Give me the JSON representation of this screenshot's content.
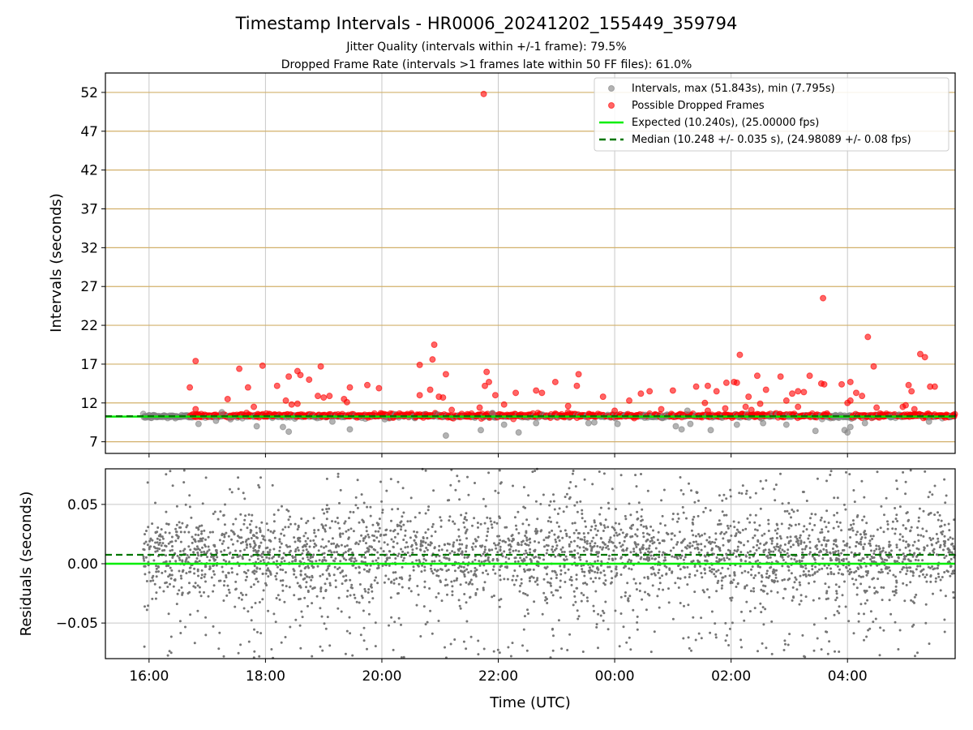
{
  "figure": {
    "title": "Timestamp Intervals - HR0006_20241202_155449_359794",
    "subtitle_1": "Jitter Quality (intervals within +/-1 frame): 79.5%",
    "subtitle_2": "Dropped Frame Rate (intervals >1 frames late within 50 FF files): 61.0%"
  },
  "colors": {
    "intervals": "#808080",
    "dropped": "#ff0000",
    "expected": "#00ee00",
    "median": "#007700",
    "hgrid_top": "#d2b06a",
    "vgrid": "#c8c8c8"
  },
  "chart_data": [
    {
      "type": "scatter",
      "name": "intervals",
      "ylabel": "Intervals (seconds)",
      "yticks": [
        "7",
        "12",
        "17",
        "22",
        "27",
        "32",
        "37",
        "42",
        "47",
        "52"
      ],
      "ylim": [
        5.5,
        54.5
      ],
      "xlim_hours": [
        15.25,
        29.85
      ],
      "grid": true,
      "legend_position": "top-right",
      "legend": {
        "intervals": "Intervals, max (51.843s), min (7.795s)",
        "dropped": "Possible Dropped Frames",
        "expected": "Expected (10.240s), (25.00000 fps)",
        "median": "Median (10.248 +/- 0.035 s), (24.98089 +/- 0.08 fps)"
      },
      "expected_line": 10.24,
      "median_line": 10.248,
      "dropped_outliers": [
        {
          "x": 21.75,
          "y": 51.8
        },
        {
          "x": 27.58,
          "y": 25.5
        },
        {
          "x": 28.35,
          "y": 20.5
        },
        {
          "x": 20.9,
          "y": 19.5
        },
        {
          "x": 26.15,
          "y": 18.2
        },
        {
          "x": 29.25,
          "y": 18.3
        },
        {
          "x": 29.33,
          "y": 17.9
        },
        {
          "x": 16.8,
          "y": 17.4
        },
        {
          "x": 20.87,
          "y": 17.6
        },
        {
          "x": 17.95,
          "y": 16.8
        },
        {
          "x": 18.95,
          "y": 16.7
        },
        {
          "x": 20.65,
          "y": 16.9
        },
        {
          "x": 28.45,
          "y": 16.7
        },
        {
          "x": 17.55,
          "y": 16.4
        },
        {
          "x": 18.55,
          "y": 16.1
        },
        {
          "x": 21.8,
          "y": 16.0
        },
        {
          "x": 18.4,
          "y": 15.4
        },
        {
          "x": 18.6,
          "y": 15.6
        },
        {
          "x": 21.1,
          "y": 15.7
        },
        {
          "x": 23.38,
          "y": 15.7
        },
        {
          "x": 26.45,
          "y": 15.5
        },
        {
          "x": 26.85,
          "y": 15.4
        },
        {
          "x": 27.35,
          "y": 15.5
        },
        {
          "x": 18.75,
          "y": 15.0
        },
        {
          "x": 21.84,
          "y": 14.7
        },
        {
          "x": 22.98,
          "y": 14.7
        },
        {
          "x": 26.05,
          "y": 14.7
        },
        {
          "x": 26.1,
          "y": 14.6
        },
        {
          "x": 25.92,
          "y": 14.6
        },
        {
          "x": 27.6,
          "y": 14.4
        },
        {
          "x": 27.9,
          "y": 14.4
        },
        {
          "x": 27.55,
          "y": 14.5
        },
        {
          "x": 28.05,
          "y": 14.7
        },
        {
          "x": 16.7,
          "y": 14.0
        },
        {
          "x": 17.7,
          "y": 14.0
        },
        {
          "x": 18.2,
          "y": 14.2
        },
        {
          "x": 19.45,
          "y": 14.0
        },
        {
          "x": 19.75,
          "y": 14.3
        },
        {
          "x": 19.95,
          "y": 13.9
        },
        {
          "x": 20.83,
          "y": 13.7
        },
        {
          "x": 21.77,
          "y": 14.2
        },
        {
          "x": 23.35,
          "y": 14.2
        },
        {
          "x": 25.4,
          "y": 14.1
        },
        {
          "x": 25.6,
          "y": 14.2
        },
        {
          "x": 25.75,
          "y": 13.5
        },
        {
          "x": 26.6,
          "y": 13.7
        },
        {
          "x": 27.15,
          "y": 13.5
        },
        {
          "x": 29.5,
          "y": 14.1
        },
        {
          "x": 29.42,
          "y": 14.1
        },
        {
          "x": 29.05,
          "y": 14.3
        },
        {
          "x": 29.1,
          "y": 13.5
        },
        {
          "x": 22.65,
          "y": 13.6
        },
        {
          "x": 22.75,
          "y": 13.3
        },
        {
          "x": 22.3,
          "y": 13.3
        },
        {
          "x": 20.65,
          "y": 13.0
        },
        {
          "x": 20.98,
          "y": 12.8
        },
        {
          "x": 21.05,
          "y": 12.7
        },
        {
          "x": 19.0,
          "y": 12.7
        },
        {
          "x": 19.1,
          "y": 12.9
        },
        {
          "x": 18.9,
          "y": 12.9
        },
        {
          "x": 17.35,
          "y": 12.5
        },
        {
          "x": 18.35,
          "y": 12.3
        },
        {
          "x": 19.35,
          "y": 12.5
        },
        {
          "x": 19.4,
          "y": 12.1
        },
        {
          "x": 21.95,
          "y": 13.0
        },
        {
          "x": 23.8,
          "y": 12.8
        },
        {
          "x": 24.25,
          "y": 12.3
        },
        {
          "x": 24.45,
          "y": 13.2
        },
        {
          "x": 24.6,
          "y": 13.5
        },
        {
          "x": 25.0,
          "y": 13.6
        },
        {
          "x": 25.55,
          "y": 12.0
        },
        {
          "x": 26.3,
          "y": 12.8
        },
        {
          "x": 26.5,
          "y": 11.9
        },
        {
          "x": 26.95,
          "y": 12.3
        },
        {
          "x": 27.25,
          "y": 13.4
        },
        {
          "x": 27.05,
          "y": 13.2
        },
        {
          "x": 28.25,
          "y": 12.9
        },
        {
          "x": 28.05,
          "y": 12.3
        },
        {
          "x": 28.15,
          "y": 13.3
        },
        {
          "x": 16.8,
          "y": 11.2
        },
        {
          "x": 17.8,
          "y": 11.5
        },
        {
          "x": 18.45,
          "y": 11.8
        },
        {
          "x": 18.55,
          "y": 11.9
        },
        {
          "x": 21.68,
          "y": 11.4
        },
        {
          "x": 22.1,
          "y": 11.8
        },
        {
          "x": 23.2,
          "y": 11.6
        },
        {
          "x": 24.8,
          "y": 11.2
        },
        {
          "x": 25.9,
          "y": 11.3
        },
        {
          "x": 26.35,
          "y": 11.1
        },
        {
          "x": 27.15,
          "y": 11.5
        },
        {
          "x": 28.0,
          "y": 12.0
        },
        {
          "x": 29.0,
          "y": 11.7
        },
        {
          "x": 29.15,
          "y": 11.2
        },
        {
          "x": 21.2,
          "y": 11.1
        },
        {
          "x": 25.6,
          "y": 11.0
        },
        {
          "x": 28.5,
          "y": 11.4
        },
        {
          "x": 26.25,
          "y": 11.5
        },
        {
          "x": 24.0,
          "y": 11.0
        },
        {
          "x": 28.95,
          "y": 11.5
        }
      ],
      "gray_outliers": [
        {
          "x": 16.85,
          "y": 9.3
        },
        {
          "x": 17.15,
          "y": 9.7
        },
        {
          "x": 17.4,
          "y": 9.9
        },
        {
          "x": 17.85,
          "y": 9.0
        },
        {
          "x": 18.3,
          "y": 8.9
        },
        {
          "x": 18.4,
          "y": 8.3
        },
        {
          "x": 19.15,
          "y": 9.6
        },
        {
          "x": 19.45,
          "y": 8.6
        },
        {
          "x": 20.05,
          "y": 9.9
        },
        {
          "x": 21.1,
          "y": 7.8
        },
        {
          "x": 21.7,
          "y": 8.5
        },
        {
          "x": 22.1,
          "y": 9.2
        },
        {
          "x": 22.35,
          "y": 8.2
        },
        {
          "x": 22.65,
          "y": 9.4
        },
        {
          "x": 23.55,
          "y": 9.4
        },
        {
          "x": 23.65,
          "y": 9.5
        },
        {
          "x": 24.05,
          "y": 9.3
        },
        {
          "x": 25.05,
          "y": 9.0
        },
        {
          "x": 25.15,
          "y": 8.6
        },
        {
          "x": 25.3,
          "y": 9.3
        },
        {
          "x": 25.65,
          "y": 8.5
        },
        {
          "x": 26.1,
          "y": 9.2
        },
        {
          "x": 26.55,
          "y": 9.4
        },
        {
          "x": 26.95,
          "y": 9.2
        },
        {
          "x": 27.45,
          "y": 8.4
        },
        {
          "x": 27.95,
          "y": 8.5
        },
        {
          "x": 28.0,
          "y": 8.2
        },
        {
          "x": 28.05,
          "y": 8.9
        },
        {
          "x": 28.3,
          "y": 9.4
        },
        {
          "x": 29.4,
          "y": 9.6
        },
        {
          "x": 25.25,
          "y": 11.0
        },
        {
          "x": 21.9,
          "y": 10.7
        },
        {
          "x": 17.25,
          "y": 10.8
        }
      ],
      "dense_band": {
        "x_start": 15.9,
        "x_end": 29.85,
        "center": 10.25,
        "spread": 0.35,
        "dropped_from": 16.7
      }
    },
    {
      "type": "scatter",
      "name": "residuals",
      "ylabel": "Residuals (seconds)",
      "xlabel": "Time (UTC)",
      "xticks": [
        "16:00",
        "18:00",
        "20:00",
        "22:00",
        "00:00",
        "02:00",
        "04:00"
      ],
      "yticks": [
        "0.05",
        "0.00",
        "−0.05"
      ],
      "ylim": [
        -0.08,
        0.08
      ],
      "xlim_hours": [
        15.25,
        29.85
      ],
      "grid": true,
      "expected_line": 0.0,
      "median_line": 0.0075,
      "points": {
        "x_start": 15.9,
        "x_end": 29.85,
        "count": 3400,
        "core_std": 0.018,
        "wide_fraction": 0.22
      }
    }
  ]
}
